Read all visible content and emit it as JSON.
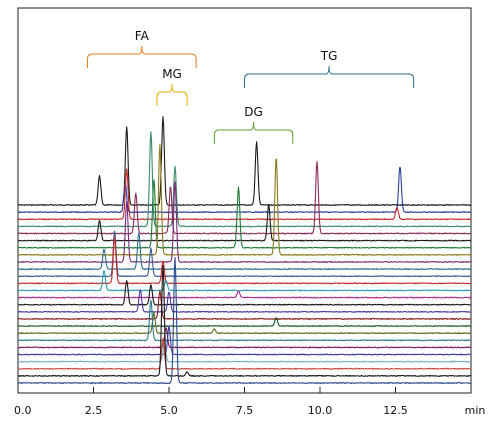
{
  "chart_data": {
    "type": "line",
    "title": "",
    "xlabel": "",
    "ylabel": "",
    "x_unit": "min",
    "xlim": [
      0,
      15
    ],
    "x_ticks": [
      0.0,
      2.5,
      5.0,
      7.5,
      10.0,
      12.5
    ],
    "x_tick_labels": [
      "0.0",
      "2.5",
      "5.0",
      "7.5",
      "10.0",
      "12.5"
    ],
    "y_axis_shown": false,
    "grid": false,
    "legend": "none",
    "peak_groups": [
      {
        "label": "FA",
        "color": "#e07b1a",
        "x_range": [
          2.3,
          5.9
        ]
      },
      {
        "label": "MG",
        "color": "#e0b000",
        "x_range": [
          4.6,
          5.6
        ]
      },
      {
        "label": "DG",
        "color": "#5aa02c",
        "x_range": [
          6.5,
          9.1
        ]
      },
      {
        "label": "TG",
        "color": "#2a6e8c",
        "x_range": [
          7.5,
          13.1
        ]
      }
    ],
    "series": [
      {
        "color": "#1a1a1a",
        "peaks": [
          [
            2.7,
            29
          ],
          [
            3.6,
            78
          ],
          [
            4.8,
            88
          ],
          [
            7.9,
            63
          ]
        ]
      },
      {
        "color": "#2b3f9c",
        "peaks": [
          [
            3.55,
            30
          ],
          [
            12.65,
            46
          ]
        ]
      },
      {
        "color": "#c42a2a",
        "peaks": [
          [
            3.6,
            50
          ],
          [
            12.55,
            12
          ]
        ]
      },
      {
        "color": "#3a8a6a",
        "peaks": [
          [
            4.4,
            95
          ],
          [
            5.2,
            60
          ]
        ]
      },
      {
        "color": "#8c2a5a",
        "peaks": [
          [
            3.9,
            40
          ],
          [
            5.05,
            47
          ],
          [
            9.9,
            72
          ]
        ]
      },
      {
        "color": "#1a1a1a",
        "peaks": [
          [
            2.7,
            20
          ],
          [
            8.3,
            36
          ]
        ]
      },
      {
        "color": "#1e7a3a",
        "peaks": [
          [
            4.5,
            68
          ],
          [
            7.3,
            60
          ]
        ]
      },
      {
        "color": "#8a7a1a",
        "peaks": [
          [
            4.7,
            110
          ],
          [
            8.55,
            98
          ]
        ]
      },
      {
        "color": "#7a2a7a",
        "peaks": [
          [
            3.6,
            60
          ],
          [
            5.2,
            80
          ]
        ]
      },
      {
        "color": "#2a6e8c",
        "peaks": [
          [
            2.85,
            20
          ],
          [
            4.0,
            36
          ]
        ]
      },
      {
        "color": "#3a5a8c",
        "peaks": [
          [
            3.2,
            45
          ],
          [
            4.4,
            28
          ]
        ]
      },
      {
        "color": "#c42a2a",
        "peaks": [
          [
            3.2,
            46
          ],
          [
            4.8,
            22
          ]
        ]
      },
      {
        "color": "#2aa0b0",
        "peaks": [
          [
            2.85,
            20
          ],
          [
            4.9,
            10
          ]
        ]
      },
      {
        "color": "#b02a8c",
        "peaks": [
          [
            7.3,
            6
          ]
        ]
      },
      {
        "color": "#1a1a1a",
        "peaks": [
          [
            3.6,
            24
          ],
          [
            4.4,
            20
          ]
        ]
      },
      {
        "color": "#4a3aa0",
        "peaks": [
          [
            4.05,
            22
          ],
          [
            5.0,
            20
          ]
        ]
      },
      {
        "color": "#8c1a1a",
        "peaks": [
          [
            4.7,
            28
          ]
        ]
      },
      {
        "color": "#1a5a2a",
        "peaks": [
          [
            8.55,
            8
          ]
        ]
      },
      {
        "color": "#5a6a1a",
        "peaks": [
          [
            4.5,
            20
          ],
          [
            6.5,
            4
          ]
        ]
      },
      {
        "color": "#2a7a8c",
        "peaks": [
          [
            4.4,
            40
          ]
        ]
      },
      {
        "color": "#7a1a5a",
        "peaks": [
          [
            4.9,
            20
          ]
        ]
      },
      {
        "color": "#3a3a9c",
        "peaks": [
          [
            5.0,
            28
          ]
        ]
      },
      {
        "color": "#7ab0c0",
        "peaks": [
          [
            4.85,
            20
          ]
        ]
      },
      {
        "color": "#c44a3a",
        "peaks": [
          [
            4.8,
            30
          ]
        ]
      },
      {
        "color": "#1a1a1a",
        "peaks": [
          [
            4.8,
            110
          ],
          [
            5.6,
            4
          ]
        ]
      },
      {
        "color": "#2a4a8c",
        "peaks": [
          [
            5.2,
            125
          ]
        ]
      }
    ]
  }
}
